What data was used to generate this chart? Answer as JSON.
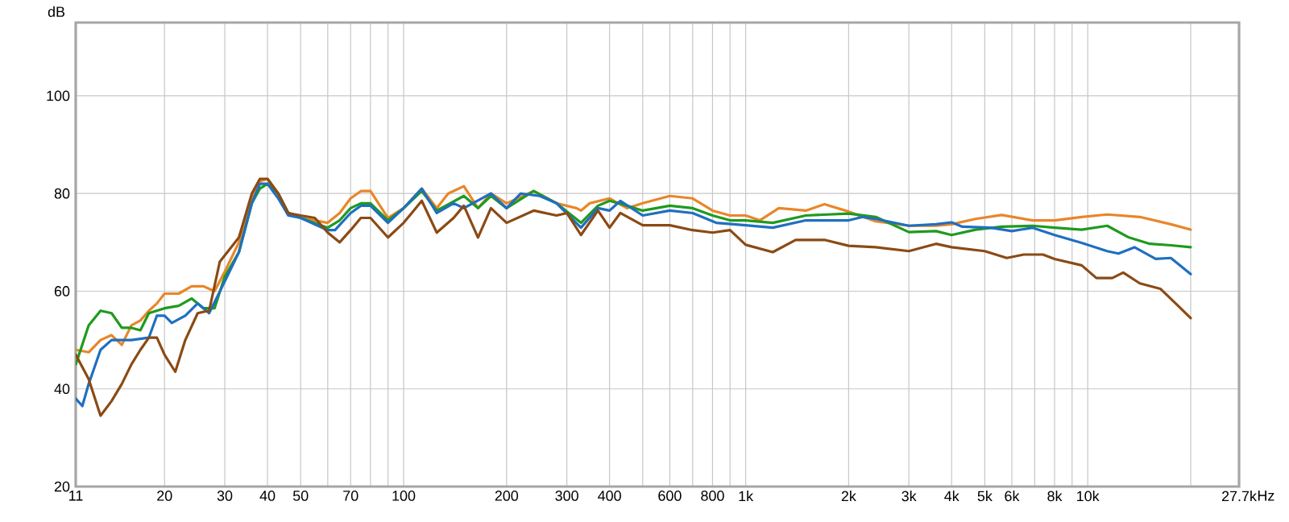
{
  "chart_data": {
    "type": "line",
    "ylabel": "dB",
    "log": "x",
    "grid": true,
    "xlim": [
      11,
      27700
    ],
    "ylim": [
      20,
      115
    ],
    "xticks": [
      11,
      20,
      30,
      40,
      50,
      {
        "value": 60,
        "label": null
      },
      70,
      {
        "value": 80,
        "label": null
      },
      {
        "value": 90,
        "label": null
      },
      100,
      200,
      300,
      400,
      {
        "value": 500,
        "label": null
      },
      600,
      {
        "value": 700,
        "label": null
      },
      800,
      {
        "value": 900,
        "label": null
      },
      {
        "value": 1000,
        "label": "1k"
      },
      {
        "value": 2000,
        "label": "2k"
      },
      {
        "value": 3000,
        "label": "3k"
      },
      {
        "value": 4000,
        "label": "4k"
      },
      {
        "value": 5000,
        "label": "5k"
      },
      {
        "value": 6000,
        "label": "6k"
      },
      {
        "value": 7000,
        "label": null
      },
      {
        "value": 8000,
        "label": "8k"
      },
      {
        "value": 9000,
        "label": null
      },
      {
        "value": 10000,
        "label": "10k"
      },
      {
        "value": 20000,
        "label": null
      },
      {
        "value": 27700,
        "label": "27.7k"
      }
    ],
    "xlabel": "Hz",
    "yticks": [
      20,
      40,
      60,
      80,
      100
    ],
    "series": [
      {
        "color": "#e8862a",
        "x": [
          11,
          12,
          13,
          14,
          15,
          16,
          17,
          18,
          19,
          20,
          22,
          24,
          26,
          28,
          30,
          33,
          36,
          38,
          40,
          43,
          46,
          50,
          55,
          60,
          65,
          70,
          75,
          80,
          90,
          100,
          113,
          125,
          135,
          150,
          165,
          180,
          200,
          240,
          280,
          320,
          330,
          350,
          400,
          450,
          500,
          600,
          700,
          800,
          900,
          1000,
          1100,
          1250,
          1500,
          1700,
          2000,
          2400,
          3000,
          3600,
          4000,
          4700,
          5600,
          6900,
          8000,
          9600,
          11400,
          14200,
          17500,
          20000
        ],
        "values": [
          48,
          47.5,
          50,
          51,
          49,
          53,
          54,
          56,
          57.5,
          59.5,
          59.5,
          61,
          61,
          60,
          64,
          70,
          79,
          82.5,
          83,
          80,
          76,
          75,
          74.5,
          74,
          76,
          79,
          80.5,
          80.5,
          75,
          77,
          81,
          77,
          80,
          81.5,
          77,
          80,
          78,
          80.5,
          78,
          77,
          76.5,
          78,
          79,
          77,
          78,
          79.5,
          79,
          76.5,
          75.5,
          75.5,
          74.5,
          77,
          76.5,
          77.8,
          76.3,
          74.3,
          73.4,
          73.4,
          73.7,
          74.8,
          75.6,
          74.5,
          74.5,
          75.2,
          75.7,
          75.2,
          73.7,
          72.6
        ]
      },
      {
        "color": "#1e9a1e",
        "x": [
          11,
          12,
          13,
          14,
          15,
          16,
          17,
          18,
          20,
          22,
          24,
          26,
          28,
          30,
          33,
          36,
          38,
          40,
          43,
          46,
          50,
          60,
          65,
          70,
          75,
          80,
          90,
          100,
          113,
          125,
          150,
          165,
          180,
          200,
          240,
          280,
          330,
          370,
          400,
          450,
          500,
          600,
          700,
          800,
          900,
          1000,
          1200,
          1500,
          2000,
          2400,
          3000,
          3600,
          4000,
          4700,
          5600,
          6900,
          8000,
          9600,
          11400,
          13200,
          15200,
          17500,
          20000
        ],
        "values": [
          45,
          53,
          56,
          55.5,
          52.5,
          52.5,
          52,
          55.5,
          56.5,
          57,
          58.5,
          56.5,
          56.5,
          63,
          68,
          78,
          81,
          82,
          80,
          76,
          75,
          73,
          74.5,
          77,
          78,
          78,
          74.5,
          77,
          80.5,
          76.5,
          79.5,
          77,
          79.5,
          77,
          80.5,
          78,
          74,
          77.5,
          78.5,
          77.5,
          76.5,
          77.5,
          77,
          75.5,
          74.5,
          74.5,
          74,
          75.5,
          75.9,
          75.2,
          72.1,
          72.3,
          71.5,
          72.6,
          73.2,
          73.4,
          73,
          72.6,
          73.4,
          71,
          69.7,
          69.4,
          69
        ]
      },
      {
        "color": "#1f6fc0",
        "x": [
          11,
          11.5,
          12,
          13,
          14,
          16,
          18,
          19,
          20,
          21,
          23,
          25,
          27,
          30,
          33,
          36,
          38,
          40,
          43,
          46,
          50,
          60,
          63,
          70,
          75,
          80,
          90,
          100,
          113,
          125,
          140,
          150,
          180,
          200,
          220,
          250,
          280,
          330,
          370,
          400,
          430,
          500,
          600,
          700,
          820,
          1000,
          1200,
          1500,
          1700,
          2000,
          2200,
          2400,
          3000,
          3600,
          4000,
          4300,
          5200,
          6000,
          6900,
          8000,
          9600,
          11400,
          12300,
          13700,
          15800,
          17500,
          20000
        ],
        "values": [
          38,
          36.5,
          41,
          48,
          50,
          50,
          50.5,
          55,
          55,
          53.5,
          55,
          57.5,
          55.5,
          62,
          68,
          78,
          82,
          82,
          79,
          75.5,
          75,
          72.5,
          72.5,
          76,
          77.5,
          77.5,
          74,
          77,
          81,
          76,
          78,
          77,
          80,
          77,
          80,
          79.5,
          78,
          73,
          77,
          76.5,
          78.5,
          75.5,
          76.5,
          76,
          74,
          73.5,
          73,
          74.5,
          74.5,
          74.5,
          75.2,
          74.8,
          73.4,
          73.7,
          74.1,
          73.2,
          73,
          72.3,
          73,
          71.5,
          69.9,
          68.2,
          67.7,
          69,
          66.6,
          66.8,
          63.5
        ]
      },
      {
        "color": "#8b4a14",
        "x": [
          11,
          12,
          13,
          14,
          15,
          16,
          17,
          18,
          19,
          20,
          21.5,
          23,
          25,
          27,
          29,
          33,
          36,
          38,
          40,
          43,
          46,
          50,
          55,
          60,
          65,
          70,
          75,
          80,
          90,
          100,
          113,
          125,
          140,
          150,
          165,
          180,
          200,
          240,
          280,
          300,
          330,
          370,
          400,
          430,
          500,
          600,
          700,
          800,
          900,
          1000,
          1200,
          1400,
          1700,
          2000,
          2400,
          3000,
          3600,
          4000,
          5000,
          5800,
          6500,
          7400,
          8000,
          9600,
          10600,
          11800,
          12700,
          14200,
          16300,
          18200,
          20000
        ],
        "values": [
          47,
          42,
          34.5,
          37.5,
          41,
          45,
          48,
          50.5,
          50.5,
          47,
          43.5,
          50,
          55.5,
          56,
          66,
          71,
          80,
          83,
          83,
          80,
          76,
          75.5,
          75,
          72,
          70,
          72.5,
          75,
          75,
          71,
          74,
          78.5,
          72,
          75,
          77.5,
          71,
          77,
          74,
          76.5,
          75.5,
          76,
          71.5,
          76.5,
          73,
          76,
          73.5,
          73.5,
          72.5,
          72,
          72.5,
          69.5,
          68,
          70.5,
          70.5,
          69.3,
          69,
          68.2,
          69.7,
          69,
          68.2,
          66.8,
          67.5,
          67.5,
          66.6,
          65.3,
          62.7,
          62.7,
          63.8,
          61.6,
          60.5,
          57.3,
          54.5
        ]
      }
    ]
  }
}
